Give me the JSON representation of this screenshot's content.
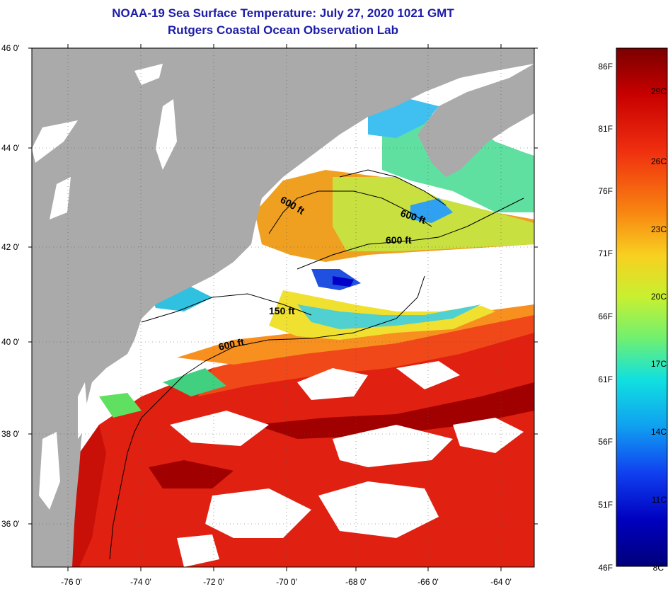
{
  "title": {
    "line1": "NOAA-19 Sea Surface Temperature:  July 27, 2020 1021 GMT",
    "line2": "Rutgers Coastal Ocean Observation Lab"
  },
  "map": {
    "lat_labels": [
      "46 0'",
      "44 0'",
      "42 0'",
      "40 0'",
      "38 0'",
      "36 0'"
    ],
    "lon_labels": [
      "-76 0'",
      "-74 0'",
      "-72 0'",
      "-70 0'",
      "-68 0'",
      "-66 0'",
      "-64 0'"
    ],
    "contours": [
      {
        "label": "600 ft"
      },
      {
        "label": "600 ft"
      },
      {
        "label": "600 ft"
      },
      {
        "label": "150 ft"
      },
      {
        "label": "600 ft"
      }
    ]
  },
  "colorbar": {
    "fahrenheit_labels": [
      "86F",
      "81F",
      "76F",
      "71F",
      "66F",
      "61F",
      "56F",
      "51F",
      "46F"
    ],
    "celsius_labels": [
      "29C",
      "26C",
      "23C",
      "20C",
      "17C",
      "14C",
      "11C",
      "8C"
    ],
    "colors": [
      "#7a0000",
      "#c80000",
      "#f03010",
      "#f88010",
      "#f8d020",
      "#c8f030",
      "#70f070",
      "#10e0e0",
      "#10a0f0",
      "#1040f0",
      "#0000c0",
      "#00007a"
    ]
  },
  "colors": {
    "land": "#aaaaaa",
    "title": "#1c1ca8",
    "cloud": "#ffffff"
  }
}
